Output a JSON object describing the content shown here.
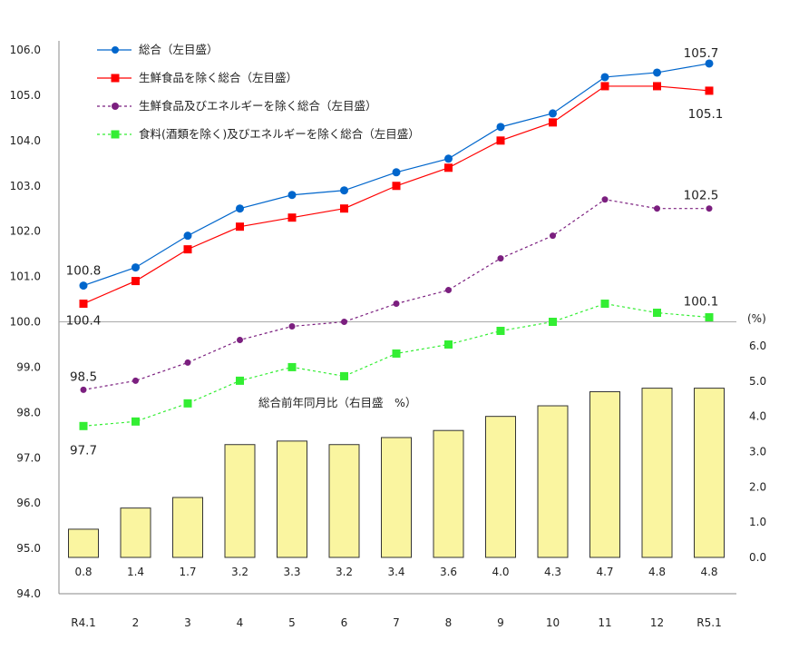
{
  "chart_data": {
    "type": "line+bar",
    "categories": [
      "R4.1",
      "2",
      "3",
      "4",
      "5",
      "6",
      "7",
      "8",
      "9",
      "10",
      "11",
      "12",
      "R5.1"
    ],
    "left_axis": {
      "ylim": [
        94.0,
        106.0
      ],
      "ticks": [
        "94.0",
        "95.0",
        "96.0",
        "97.0",
        "98.0",
        "99.0",
        "100.0",
        "101.0",
        "102.0",
        "103.0",
        "104.0",
        "105.0",
        "106.0"
      ]
    },
    "right_axis": {
      "unit_label": "(%)",
      "ylim": [
        0.0,
        6.0
      ],
      "ticks": [
        "0.0",
        "1.0",
        "2.0",
        "3.0",
        "4.0",
        "5.0",
        "6.0"
      ]
    },
    "reference_line": 100.0,
    "grid": false,
    "legend_position": "top-left",
    "series": [
      {
        "name": "総合（左目盛）",
        "axis": "left",
        "style": "solid",
        "marker": "circle",
        "color": "#0066CC",
        "values": [
          100.8,
          101.2,
          101.9,
          102.5,
          102.8,
          102.9,
          103.3,
          103.6,
          104.3,
          104.6,
          105.4,
          105.5,
          105.7
        ]
      },
      {
        "name": "生鮮食品を除く総合（左目盛）",
        "axis": "left",
        "style": "solid",
        "marker": "square",
        "color": "#FF0000",
        "values": [
          100.4,
          100.9,
          101.6,
          102.1,
          102.3,
          102.5,
          103.0,
          103.4,
          104.0,
          104.4,
          105.2,
          105.2,
          105.1
        ]
      },
      {
        "name": "生鮮食品及びエネルギーを除く総合（左目盛）",
        "axis": "left",
        "style": "dashed",
        "marker": "circle",
        "color": "#7B1F7F",
        "values": [
          98.5,
          98.7,
          99.1,
          99.6,
          99.9,
          100.0,
          100.4,
          100.7,
          101.4,
          101.9,
          102.7,
          102.5,
          102.5
        ]
      },
      {
        "name": "食料(酒類を除く)及びエネルギーを除く総合（左目盛）",
        "axis": "left",
        "style": "dashed",
        "marker": "square",
        "color": "#33EE33",
        "values": [
          97.7,
          97.8,
          98.2,
          98.7,
          99.0,
          98.8,
          99.3,
          99.5,
          99.8,
          100.0,
          100.4,
          100.2,
          100.1
        ]
      }
    ],
    "bars": {
      "name": "総合前年同月比（右目盛　%）",
      "axis": "right",
      "color": "#FAF5A0",
      "edge": "#333333",
      "values": [
        0.8,
        1.4,
        1.7,
        3.2,
        3.3,
        3.2,
        3.4,
        3.6,
        4.0,
        4.3,
        4.7,
        4.8,
        4.8
      ],
      "labels": [
        "0.8",
        "1.4",
        "1.7",
        "3.2",
        "3.3",
        "3.2",
        "3.4",
        "3.6",
        "4.0",
        "4.3",
        "4.7",
        "4.8",
        "4.8"
      ]
    },
    "annotations": [
      {
        "text": "100.8",
        "series": 0,
        "index": 0
      },
      {
        "text": "100.4",
        "series": 1,
        "index": 0
      },
      {
        "text": "98.5",
        "series": 2,
        "index": 0
      },
      {
        "text": "97.7",
        "series": 3,
        "index": 0
      },
      {
        "text": "105.7",
        "series": 0,
        "index": 12
      },
      {
        "text": "105.1",
        "series": 1,
        "index": 12
      },
      {
        "text": "102.5",
        "series": 2,
        "index": 12
      },
      {
        "text": "100.1",
        "series": 3,
        "index": 12
      }
    ]
  }
}
